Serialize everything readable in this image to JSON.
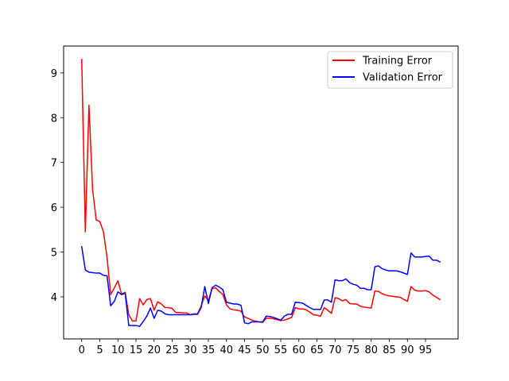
{
  "chart_data": {
    "type": "line",
    "title": "",
    "xlabel": "",
    "ylabel": "",
    "xlim": [
      -5,
      104
    ],
    "ylim": [
      3.06,
      9.6
    ],
    "x_ticks": [
      0,
      5,
      10,
      15,
      20,
      25,
      30,
      35,
      40,
      45,
      50,
      55,
      60,
      65,
      70,
      75,
      80,
      85,
      90,
      95
    ],
    "y_ticks": [
      4,
      5,
      6,
      7,
      8,
      9
    ],
    "grid": false,
    "legend_position": "upper right",
    "x": [
      0,
      1,
      2,
      3,
      4,
      5,
      6,
      7,
      8,
      9,
      10,
      11,
      12,
      13,
      14,
      15,
      16,
      17,
      18,
      19,
      20,
      21,
      22,
      23,
      24,
      25,
      26,
      27,
      28,
      29,
      30,
      31,
      32,
      33,
      34,
      35,
      36,
      37,
      38,
      39,
      40,
      41,
      42,
      43,
      44,
      45,
      46,
      47,
      48,
      49,
      50,
      51,
      52,
      53,
      54,
      55,
      56,
      57,
      58,
      59,
      60,
      61,
      62,
      63,
      64,
      65,
      66,
      67,
      68,
      69,
      70,
      71,
      72,
      73,
      74,
      75,
      76,
      77,
      78,
      79,
      80,
      81,
      82,
      83,
      84,
      85,
      86,
      87,
      88,
      89,
      90,
      91,
      92,
      93,
      94,
      95,
      96,
      97,
      98,
      99
    ],
    "series": [
      {
        "name": "Training Error",
        "color": "#ff0000",
        "values": [
          9.3,
          5.45,
          8.28,
          6.4,
          5.72,
          5.68,
          5.45,
          4.88,
          4.05,
          4.2,
          4.36,
          4.06,
          4.1,
          3.6,
          3.46,
          3.46,
          3.96,
          3.82,
          3.94,
          3.96,
          3.7,
          3.89,
          3.84,
          3.76,
          3.76,
          3.74,
          3.65,
          3.65,
          3.64,
          3.64,
          3.6,
          3.62,
          3.62,
          3.8,
          4.02,
          3.92,
          4.18,
          4.2,
          4.12,
          4.05,
          3.82,
          3.73,
          3.71,
          3.7,
          3.68,
          3.55,
          3.52,
          3.48,
          3.46,
          3.44,
          3.43,
          3.52,
          3.52,
          3.51,
          3.49,
          3.47,
          3.48,
          3.51,
          3.54,
          3.76,
          3.73,
          3.73,
          3.71,
          3.66,
          3.6,
          3.59,
          3.57,
          3.76,
          3.7,
          3.63,
          3.98,
          3.96,
          3.91,
          3.94,
          3.85,
          3.84,
          3.84,
          3.79,
          3.77,
          3.76,
          3.75,
          4.13,
          4.12,
          4.07,
          4.04,
          4.02,
          4.01,
          4.0,
          3.99,
          3.94,
          3.9,
          4.23,
          4.15,
          4.13,
          4.13,
          4.14,
          4.11,
          4.04,
          3.99,
          3.94
        ]
      },
      {
        "name": "Validation Error",
        "color": "#0000ff",
        "values": [
          5.12,
          4.6,
          4.55,
          4.54,
          4.53,
          4.53,
          4.48,
          4.47,
          3.8,
          3.9,
          4.11,
          4.05,
          4.08,
          3.36,
          3.36,
          3.36,
          3.34,
          3.45,
          3.57,
          3.75,
          3.52,
          3.7,
          3.68,
          3.62,
          3.6,
          3.6,
          3.6,
          3.6,
          3.6,
          3.6,
          3.6,
          3.61,
          3.61,
          3.76,
          4.23,
          3.85,
          4.2,
          4.26,
          4.22,
          4.16,
          3.88,
          3.86,
          3.84,
          3.84,
          3.81,
          3.42,
          3.4,
          3.44,
          3.44,
          3.44,
          3.44,
          3.57,
          3.56,
          3.54,
          3.51,
          3.48,
          3.57,
          3.61,
          3.61,
          3.88,
          3.87,
          3.86,
          3.81,
          3.76,
          3.72,
          3.72,
          3.72,
          3.93,
          3.93,
          3.88,
          4.38,
          4.36,
          4.36,
          4.4,
          4.32,
          4.28,
          4.26,
          4.19,
          4.19,
          4.16,
          4.16,
          4.67,
          4.69,
          4.63,
          4.6,
          4.58,
          4.58,
          4.58,
          4.56,
          4.53,
          4.5,
          4.98,
          4.89,
          4.89,
          4.89,
          4.9,
          4.91,
          4.82,
          4.82,
          4.78
        ]
      }
    ]
  }
}
